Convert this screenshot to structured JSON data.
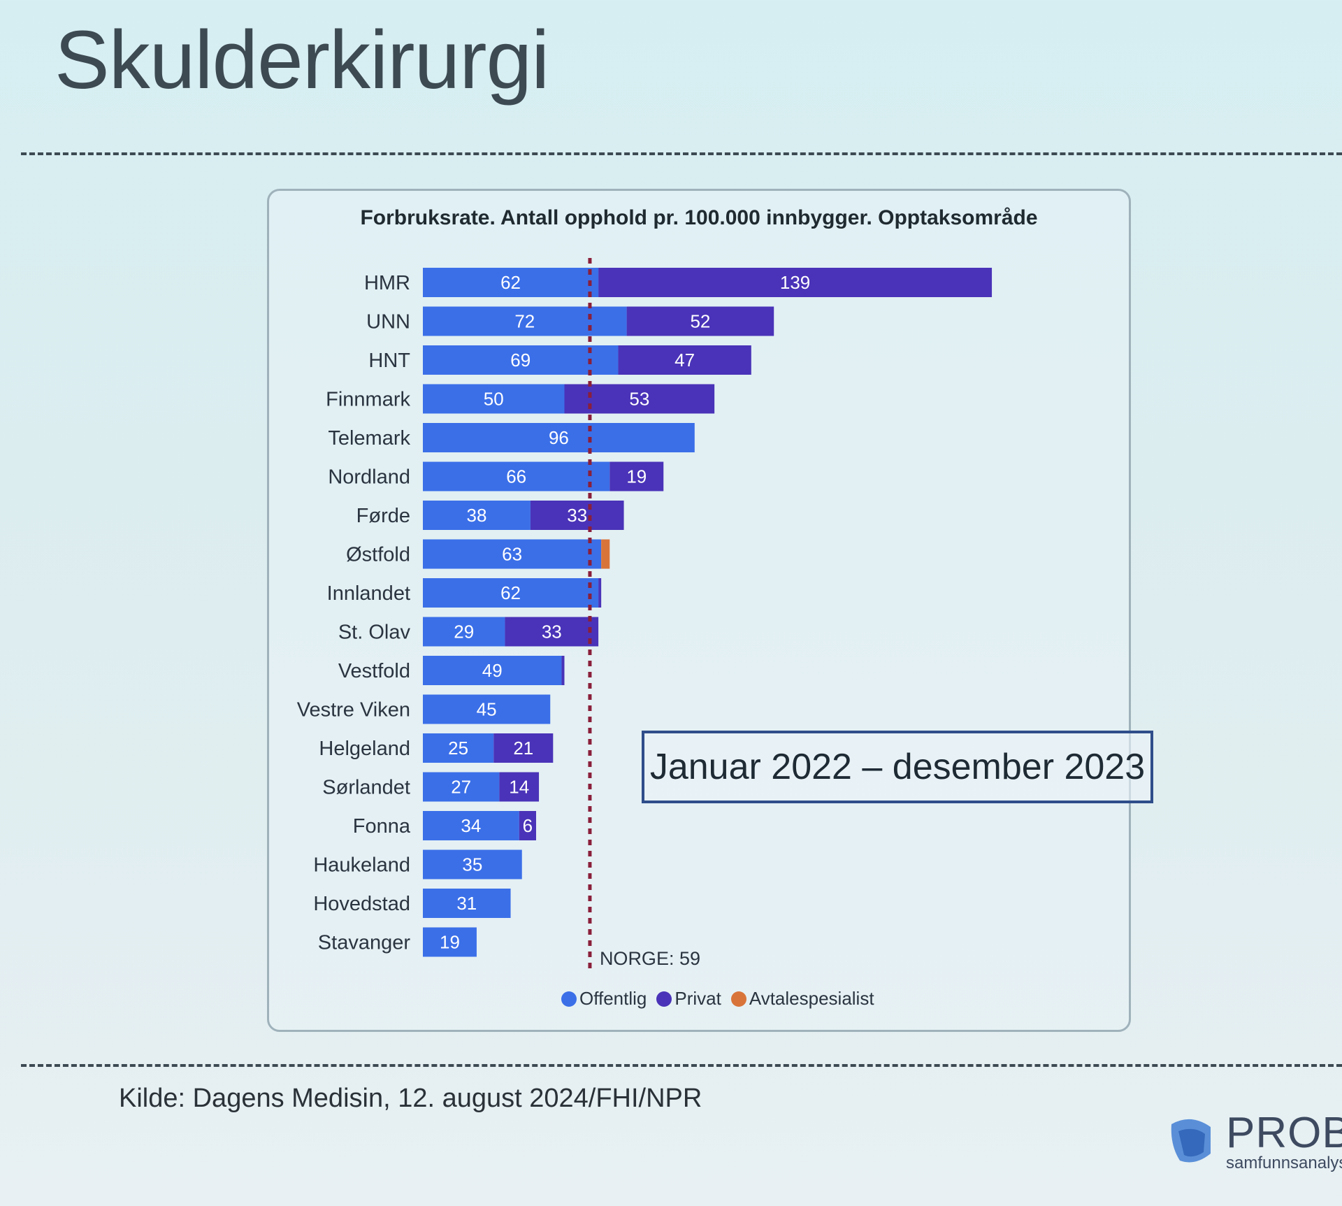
{
  "slide": {
    "title": "Skulderkirurgi",
    "period": "Januar 2022 – desember 2023",
    "source": "Kilde: Dagens Medisin, 12. august 2024/FHI/NPR",
    "logo": {
      "name": "PROBA",
      "tagline": "samfunnsanalys"
    }
  },
  "chart_data": {
    "type": "bar",
    "orientation": "horizontal",
    "stacked": true,
    "title": "Forbruksrate. Antall opphold pr. 100.000 innbygger. Opptaksområde",
    "categories": [
      "HMR",
      "UNN",
      "HNT",
      "Finnmark",
      "Telemark",
      "Nordland",
      "Førde",
      "Østfold",
      "Innlandet",
      "St. Olav",
      "Vestfold",
      "Vestre Viken",
      "Helgeland",
      "Sørlandet",
      "Fonna",
      "Haukeland",
      "Hovedstad",
      "Stavanger"
    ],
    "series": [
      {
        "name": "Offentlig",
        "color": "#3b6fe8",
        "values": [
          62,
          72,
          69,
          50,
          96,
          66,
          38,
          63,
          62,
          29,
          49,
          45,
          25,
          27,
          34,
          35,
          31,
          19
        ],
        "labels": [
          "62",
          "72",
          "69",
          "50",
          "96",
          "66",
          "38",
          "63",
          "62",
          "29",
          "49",
          "45",
          "25",
          "27",
          "34",
          "35",
          "31",
          "19"
        ]
      },
      {
        "name": "Privat",
        "color": "#4a33b8",
        "values": [
          139,
          52,
          47,
          53,
          0,
          19,
          33,
          0,
          1,
          33,
          1,
          0,
          21,
          14,
          6,
          0,
          0,
          0
        ],
        "labels": [
          "139",
          "52",
          "47",
          "53",
          "",
          "19",
          "33",
          "",
          "",
          "33",
          "",
          "",
          "21",
          "14",
          "6",
          "",
          "",
          ""
        ]
      },
      {
        "name": "Avtalespesialist",
        "color": "#d8743a",
        "values": [
          0,
          0,
          0,
          0,
          0,
          0,
          0,
          3,
          0,
          0,
          0,
          0,
          0,
          0,
          0,
          0,
          0,
          0
        ],
        "labels": [
          "",
          "",
          "",
          "",
          "",
          "",
          "",
          "",
          "",
          "",
          "",
          "",
          "",
          "",
          "",
          "",
          "",
          ""
        ]
      }
    ],
    "reference_line": {
      "value": 59,
      "label": "NORGE: 59",
      "color": "#8a1f3a"
    },
    "xlim": [
      0,
      210
    ],
    "grid": false,
    "legend": "bottom-center"
  }
}
